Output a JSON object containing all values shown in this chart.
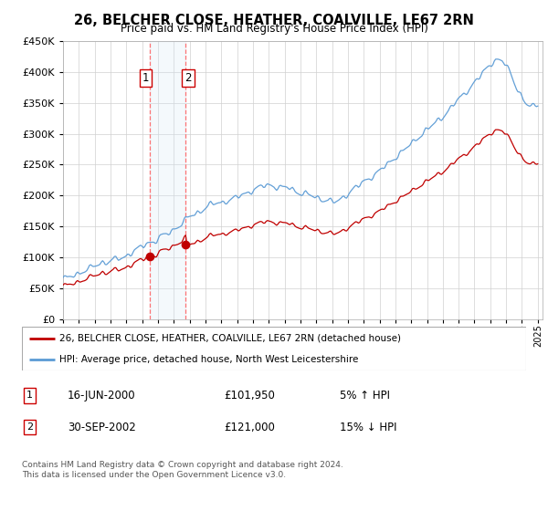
{
  "title": "26, BELCHER CLOSE, HEATHER, COALVILLE, LE67 2RN",
  "subtitle": "Price paid vs. HM Land Registry's House Price Index (HPI)",
  "legend_line1": "26, BELCHER CLOSE, HEATHER, COALVILLE, LE67 2RN (detached house)",
  "legend_line2": "HPI: Average price, detached house, North West Leicestershire",
  "transaction1_date": "16-JUN-2000",
  "transaction1_price": "£101,950",
  "transaction1_hpi": "5% ↑ HPI",
  "transaction2_date": "30-SEP-2002",
  "transaction2_price": "£121,000",
  "transaction2_hpi": "15% ↓ HPI",
  "footer": "Contains HM Land Registry data © Crown copyright and database right 2024.\nThis data is licensed under the Open Government Licence v3.0.",
  "hpi_color": "#5B9BD5",
  "price_color": "#C00000",
  "marker_color": "#C00000",
  "vline_color": "#FF6666",
  "shade_color": "#D6E8F7",
  "ylim": [
    0,
    450000
  ],
  "yticks": [
    0,
    50000,
    100000,
    150000,
    200000,
    250000,
    300000,
    350000,
    400000,
    450000
  ],
  "t1_year": 2000.458,
  "t1_price": 101950,
  "t2_year": 2002.75,
  "t2_price": 121000
}
